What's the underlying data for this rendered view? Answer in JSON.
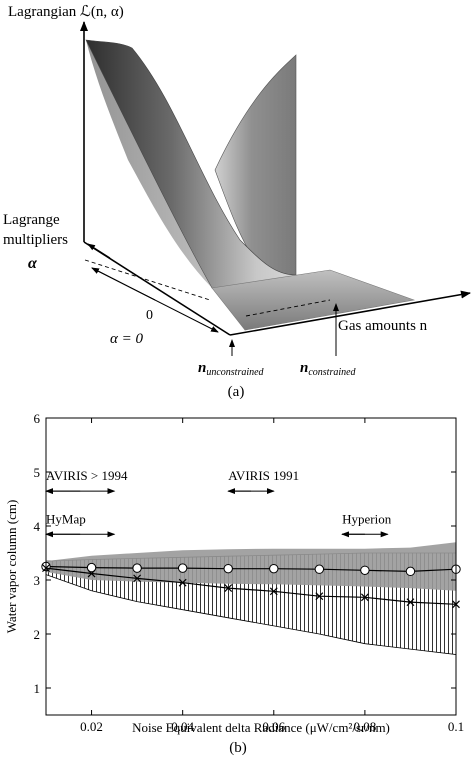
{
  "panel_a": {
    "label": "(a)",
    "z_axis_label": "Lagrangian ℒ(n, α)",
    "alpha_axis_label": [
      "Lagrange",
      "multipliers",
      "α"
    ],
    "x_axis_label": "Gas amounts n",
    "zero_label": "0",
    "alpha_zero_label": "α = 0",
    "n_unconstrained": "n",
    "n_unconstrained_sub": "unconstrained",
    "n_constrained": "n",
    "n_constrained_sub": "constrained"
  },
  "chart_data": {
    "type": "line",
    "panel_label": "(b)",
    "xlabel": "Noise Equivalent delta Radiance (μW/cm²/sr/nm)",
    "ylabel": "Water vapor column (cm)",
    "xlim": [
      0.01,
      0.1
    ],
    "ylim": [
      0.5,
      6
    ],
    "xticks": [
      0.02,
      0.04,
      0.06,
      0.08,
      0.1
    ],
    "xtick_labels": [
      "0.02",
      "0.04",
      "0.06",
      "0.08",
      "0.1"
    ],
    "yticks": [
      1,
      2,
      3,
      4,
      5,
      6
    ],
    "ytick_labels": [
      "1",
      "2",
      "3",
      "4",
      "5",
      "6"
    ],
    "grid": false,
    "x": [
      0.01,
      0.02,
      0.03,
      0.04,
      0.05,
      0.06,
      0.07,
      0.08,
      0.09,
      0.1
    ],
    "series": [
      {
        "marker": "circle",
        "values": [
          3.25,
          3.23,
          3.22,
          3.22,
          3.21,
          3.21,
          3.2,
          3.18,
          3.16,
          3.2
        ],
        "band_lower": [
          3.15,
          3.0,
          2.97,
          2.95,
          2.93,
          2.92,
          2.9,
          2.88,
          2.85,
          2.8
        ],
        "band_upper": [
          3.35,
          3.45,
          3.5,
          3.55,
          3.57,
          3.58,
          3.58,
          3.58,
          3.6,
          3.7
        ],
        "band_color": "#999999"
      },
      {
        "marker": "x",
        "values": [
          3.22,
          3.12,
          3.03,
          2.95,
          2.85,
          2.79,
          2.7,
          2.68,
          2.59,
          2.55
        ],
        "band_lower": [
          3.1,
          2.8,
          2.6,
          2.45,
          2.3,
          2.15,
          2.0,
          1.82,
          1.72,
          1.62
        ],
        "band_upper": [
          3.35,
          3.38,
          3.4,
          3.42,
          3.44,
          3.46,
          3.48,
          3.5,
          3.5,
          3.5
        ],
        "band_style": "vertical-hatch"
      }
    ],
    "annotations": [
      {
        "text": "AVIRIS > 1994",
        "x_range": [
          0.01,
          0.025
        ],
        "y": 4.85
      },
      {
        "text": "AVIRIS 1991",
        "x_range": [
          0.05,
          0.06
        ],
        "y": 4.85
      },
      {
        "text": "HyMap",
        "x_range": [
          0.01,
          0.025
        ],
        "y": 4.05
      },
      {
        "text": "Hyperion",
        "x_range": [
          0.075,
          0.085
        ],
        "y": 4.05
      }
    ]
  }
}
